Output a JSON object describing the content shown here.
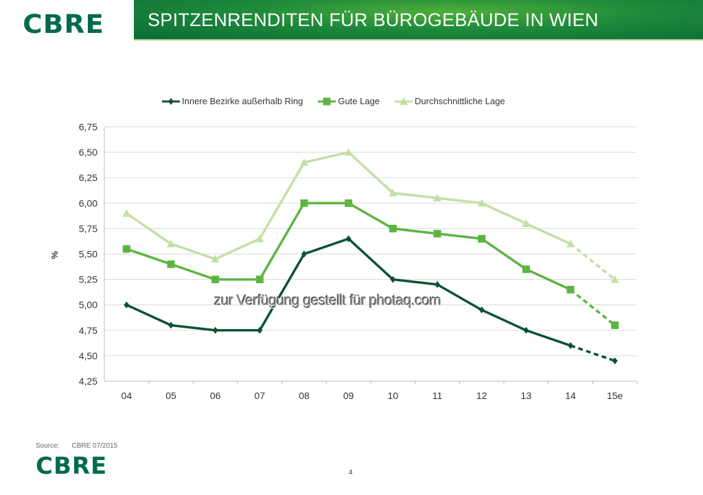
{
  "header": {
    "logo": "CBRE",
    "title": "SPITZENRENDITEN FÜR BÜROGEBÄUDE IN WIEN"
  },
  "footer": {
    "source_label": "Source:",
    "source_value": "CBRE 07/2015",
    "logo": "CBRE",
    "page": "4"
  },
  "watermark": "zur Verfügung gestellt für photaq.com",
  "chart_data": {
    "type": "line",
    "title": "",
    "xlabel": "",
    "ylabel": "%",
    "ylim": [
      4.25,
      6.75
    ],
    "yticks": [
      "4,25",
      "4,50",
      "4,75",
      "5,00",
      "5,25",
      "5,50",
      "5,75",
      "6,00",
      "6,25",
      "6,50",
      "6,75"
    ],
    "categories": [
      "04",
      "05",
      "06",
      "07",
      "08",
      "09",
      "10",
      "11",
      "12",
      "13",
      "14",
      "15e"
    ],
    "legend_position": "top",
    "grid": true,
    "series": [
      {
        "name": "Innere Bezirke außerhalb Ring",
        "color": "#0b5232",
        "marker": "diamond",
        "values": [
          5.0,
          4.8,
          4.75,
          4.75,
          5.5,
          5.65,
          5.25,
          5.2,
          4.95,
          4.75,
          4.6,
          4.45
        ]
      },
      {
        "name": "Gute Lage",
        "color": "#5db443",
        "marker": "square",
        "values": [
          5.55,
          5.4,
          5.25,
          5.25,
          6.0,
          6.0,
          5.75,
          5.7,
          5.65,
          5.35,
          5.15,
          4.8
        ]
      },
      {
        "name": "Durchschnittliche Lage",
        "color": "#c2e0a4",
        "marker": "triangle",
        "values": [
          5.9,
          5.6,
          5.45,
          5.65,
          6.4,
          6.5,
          6.1,
          6.05,
          6.0,
          5.8,
          5.6,
          5.25
        ]
      }
    ],
    "forecast_from_index": 10
  }
}
